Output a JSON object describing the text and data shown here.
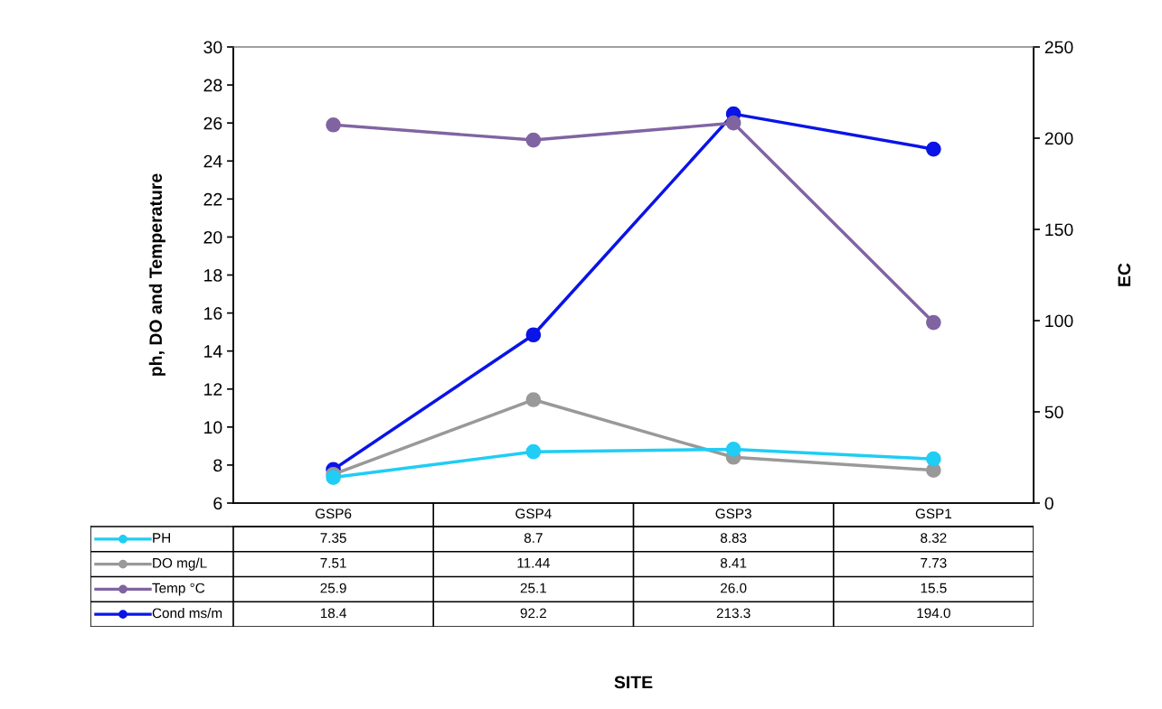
{
  "chart_data": {
    "type": "line",
    "annotations": [
      "SITE"
    ],
    "ylabel": "ph, DO and Temperature",
    "y2label": "EC",
    "categories": [
      "GSP6",
      "GSP4",
      "GSP3",
      "GSP1"
    ],
    "series": [
      {
        "name": "PH",
        "color": "#1fcdf5",
        "values": [
          7.35,
          8.7,
          8.83,
          8.32
        ]
      },
      {
        "name": "DO mg/L",
        "color": "#999999",
        "values": [
          7.51,
          11.44,
          8.41,
          7.73
        ]
      },
      {
        "name": "Temp °C",
        "color": "#8064a2",
        "values": [
          25.9,
          25.1,
          26.0,
          15.5
        ],
        "value_labels": [
          "25.9",
          "25.1",
          "26.0",
          "15.5"
        ]
      },
      {
        "name": "Cond ms/m",
        "color": "#0a14e6",
        "axis": "y2",
        "values": [
          18.4,
          92.2,
          213.3,
          194.0
        ],
        "value_labels": [
          "18.4",
          "92.2",
          "213.3",
          "194.0"
        ]
      }
    ],
    "ylim": [
      6,
      30
    ],
    "yticks": [
      6,
      8,
      10,
      12,
      14,
      16,
      18,
      20,
      22,
      24,
      26,
      28,
      30
    ],
    "y2lim": [
      0,
      250
    ],
    "y2ticks": [
      0,
      50,
      100,
      150,
      200,
      250
    ],
    "data_labels": true,
    "legend": "bottom left",
    "grid": false,
    "marker": "circle",
    "line_style": "solid"
  }
}
